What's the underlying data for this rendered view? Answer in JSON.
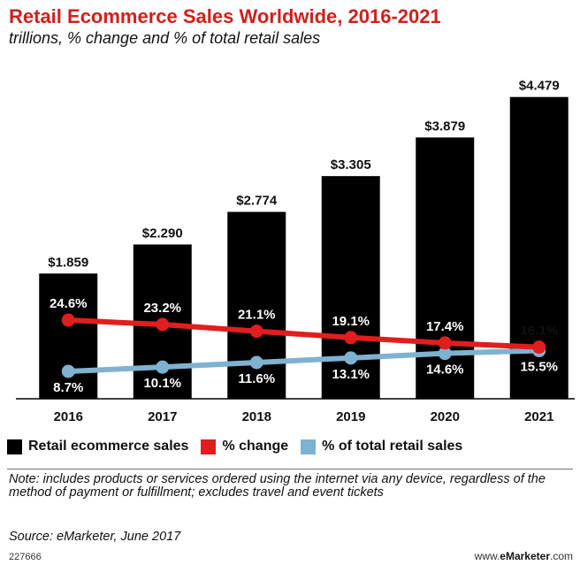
{
  "header": {
    "title": "Retail Ecommerce Sales Worldwide, 2016-2021",
    "subtitle": "trillions, % change and % of total retail sales"
  },
  "colors": {
    "bars": "#000000",
    "pct_change": "#e01e1e",
    "pct_total": "#7fb2d0",
    "title": "#d0201c"
  },
  "chart_data": {
    "type": "bar",
    "categories": [
      "2016",
      "2017",
      "2018",
      "2019",
      "2020",
      "2021"
    ],
    "series": [
      {
        "name": "Retail ecommerce sales",
        "type": "bar",
        "values": [
          1.859,
          2.29,
          2.774,
          3.305,
          3.879,
          4.479
        ],
        "labels": [
          "$1.859",
          "$2.290",
          "$2.774",
          "$3.305",
          "$3.879",
          "$4.479"
        ]
      },
      {
        "name": "% change",
        "type": "line",
        "values": [
          24.6,
          23.2,
          21.1,
          19.1,
          17.4,
          16.1
        ],
        "labels": [
          "24.6%",
          "23.2%",
          "21.1%",
          "19.1%",
          "17.4%",
          "16.1%"
        ]
      },
      {
        "name": "% of total retail sales",
        "type": "line",
        "values": [
          8.7,
          10.1,
          11.6,
          13.1,
          14.6,
          15.5
        ],
        "labels": [
          "8.7%",
          "10.1%",
          "11.6%",
          "13.1%",
          "14.6%",
          "15.5%"
        ]
      }
    ],
    "legend_position": "bottom",
    "grid": false
  },
  "legend": {
    "items": [
      {
        "label": "Retail ecommerce sales"
      },
      {
        "label": "% change"
      },
      {
        "label": "% of total retail sales"
      }
    ]
  },
  "footer": {
    "note": "Note: includes products or services ordered using the internet via any device, regardless of the method of payment or fulfillment; excludes travel and event tickets",
    "source": "Source: eMarketer, June 2017",
    "chart_id": "227666",
    "brand_prefix": "www.",
    "brand_name": "eMarketer",
    "brand_suffix": ".com"
  }
}
